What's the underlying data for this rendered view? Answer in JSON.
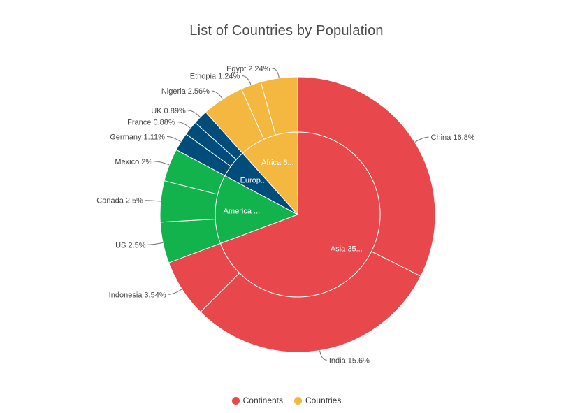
{
  "chart_data": {
    "type": "pie",
    "title": "List of Countries by Population",
    "legend_position": "bottom",
    "legend": [
      {
        "label": "Continents",
        "color": "#E8474C"
      },
      {
        "label": "Countries",
        "color": "#F4B740"
      }
    ],
    "inner_ring": {
      "name": "Continents",
      "slices": [
        {
          "label": "Asia 35...",
          "value": 35.94,
          "color": "#E8474C"
        },
        {
          "label": "America ...",
          "value": 7,
          "color": "#12B24C"
        },
        {
          "label": "Europ...",
          "value": 2.88,
          "color": "#004C7A"
        },
        {
          "label": "Africa 6...",
          "value": 6.04,
          "color": "#F4B740"
        }
      ]
    },
    "outer_ring": {
      "name": "Countries",
      "slices": [
        {
          "label": "China 16.8%",
          "value": 16.8,
          "color": "#E8474C"
        },
        {
          "label": "India 15.6%",
          "value": 15.6,
          "color": "#E8474C"
        },
        {
          "label": "Indonesia 3.54%",
          "value": 3.54,
          "color": "#E8474C"
        },
        {
          "label": "US 2.5%",
          "value": 2.5,
          "color": "#12B24C"
        },
        {
          "label": "Canada 2.5%",
          "value": 2.5,
          "color": "#12B24C"
        },
        {
          "label": "Mexico 2%",
          "value": 2,
          "color": "#12B24C"
        },
        {
          "label": "Germany 1.11%",
          "value": 1.11,
          "color": "#004C7A"
        },
        {
          "label": "France 0.88%",
          "value": 0.88,
          "color": "#004C7A"
        },
        {
          "label": "UK 0.89%",
          "value": 0.89,
          "color": "#004C7A"
        },
        {
          "label": "Nigeria 2.56%",
          "value": 2.56,
          "color": "#F4B740"
        },
        {
          "label": "Ethopia 1.24%",
          "value": 1.24,
          "color": "#F4B740"
        },
        {
          "label": "Egypt 2.24%",
          "value": 2.24,
          "color": "#F4B740"
        }
      ]
    }
  }
}
